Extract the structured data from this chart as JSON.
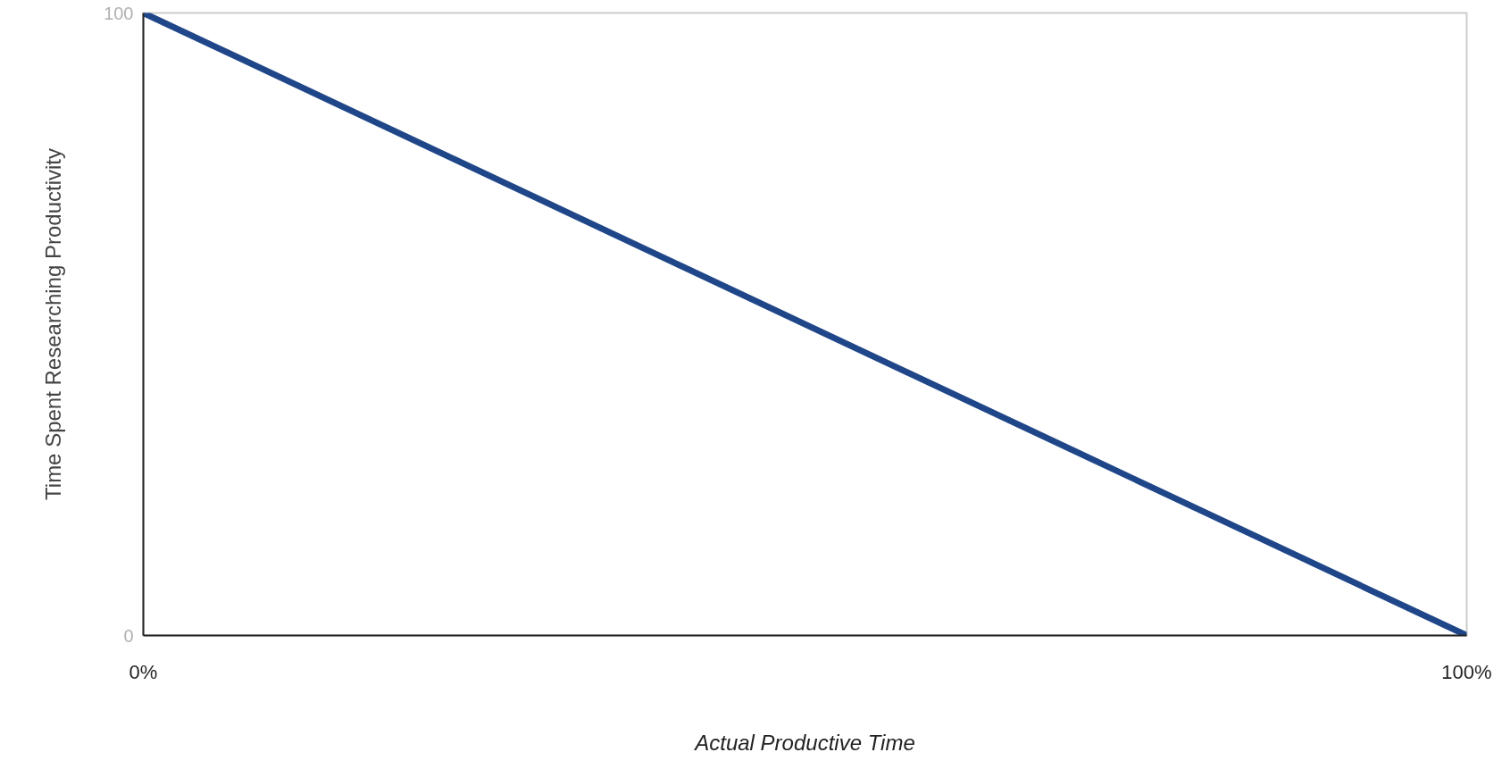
{
  "chart_data": {
    "type": "line",
    "xlabel": "Actual Productive Time",
    "ylabel": "Time Spent Researching Productivity",
    "x": [
      0,
      100
    ],
    "series": [
      {
        "color": "#1f4688",
        "values": [
          100,
          0
        ]
      }
    ],
    "xlim": [
      0,
      100
    ],
    "ylim": [
      0,
      100
    ],
    "xticks": [
      {
        "value": 0,
        "label": "0%"
      },
      {
        "value": 100,
        "label": "100%"
      }
    ],
    "yticks": [
      0,
      100
    ],
    "marker": "none",
    "line_style": "solid"
  }
}
